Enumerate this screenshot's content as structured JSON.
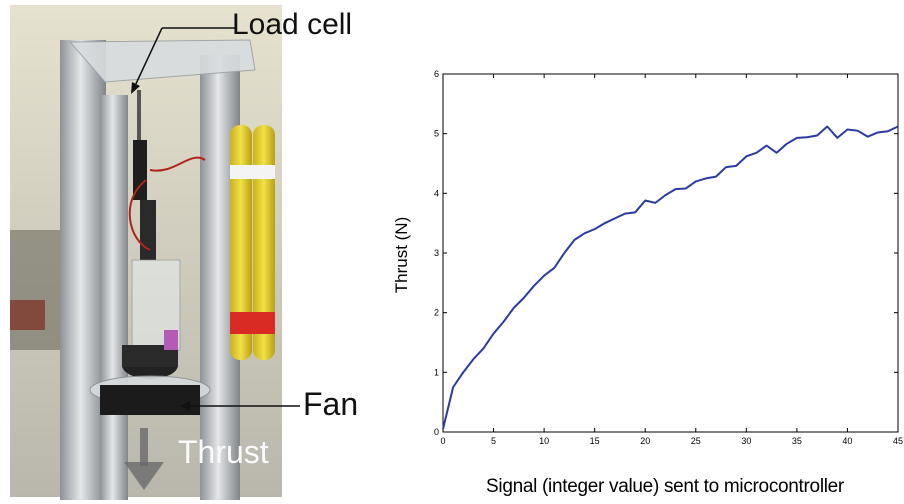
{
  "photo": {
    "labels": {
      "load_cell": "Load cell",
      "fan": "Fan",
      "thrust": "Thrust"
    },
    "colors": {
      "battery": "#e8d43a",
      "battery_band": "#d92a24",
      "tube": "#bfc3c6",
      "background_wall": "#dcd8c4"
    }
  },
  "chart_data": {
    "type": "line",
    "xlabel": "Signal (integer value) sent to microcontroller",
    "ylabel": "Thrust (N)",
    "xlim": [
      0,
      45
    ],
    "ylim": [
      0,
      6
    ],
    "xticks": [
      0,
      5,
      10,
      15,
      20,
      25,
      30,
      35,
      40,
      45
    ],
    "yticks": [
      0,
      1,
      2,
      3,
      4,
      5,
      6
    ],
    "grid": false,
    "line_color": "#2b3ba3",
    "series": [
      {
        "x": [
          0,
          1,
          2,
          3,
          4,
          5,
          6,
          7,
          8,
          9,
          10,
          11,
          12,
          13,
          14,
          15,
          16,
          17,
          18,
          19,
          20,
          21,
          22,
          23,
          24,
          25,
          26,
          27,
          28,
          29,
          30,
          31,
          32,
          33,
          34,
          35,
          36,
          37,
          38,
          39,
          40,
          41,
          42,
          43,
          44,
          45
        ],
        "values": [
          0.05,
          0.75,
          1.0,
          1.22,
          1.4,
          1.65,
          1.85,
          2.08,
          2.25,
          2.45,
          2.62,
          2.75,
          3.0,
          3.22,
          3.33,
          3.4,
          3.5,
          3.58,
          3.66,
          3.68,
          3.88,
          3.84,
          3.97,
          4.07,
          4.08,
          4.2,
          4.25,
          4.28,
          4.44,
          4.46,
          4.62,
          4.68,
          4.8,
          4.68,
          4.83,
          4.93,
          4.94,
          4.97,
          5.12,
          4.93,
          5.07,
          5.05,
          4.95,
          5.02,
          5.04,
          5.12
        ]
      }
    ]
  }
}
